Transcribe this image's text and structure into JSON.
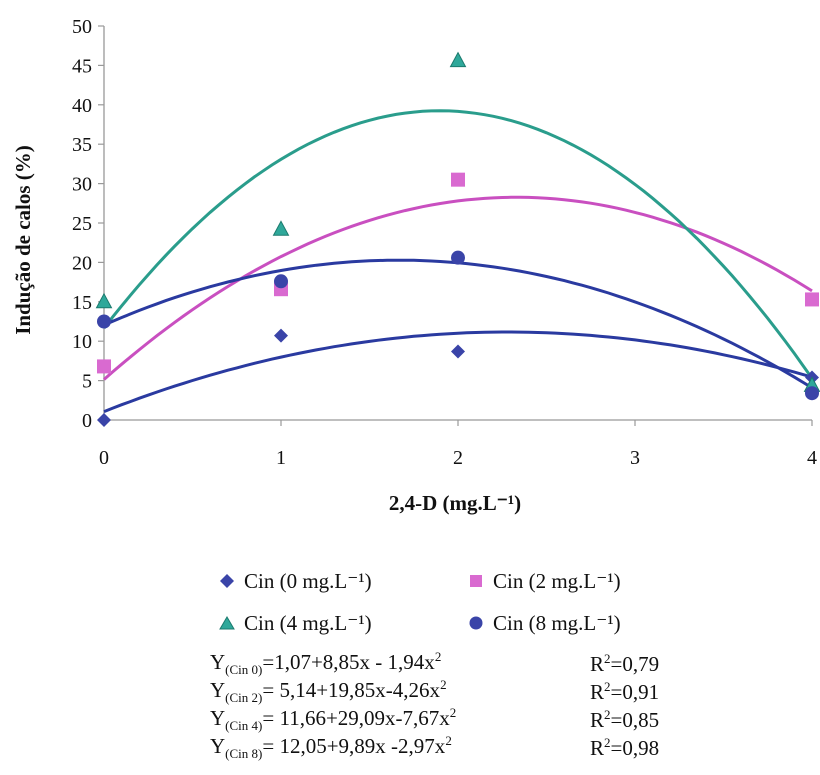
{
  "chart_data": {
    "type": "scatter",
    "ylabel": "Indução de calos (%)",
    "xlabel": "2,4-D (mg.L⁻¹)",
    "x_ticks": [
      0,
      1,
      2,
      3,
      4
    ],
    "y_ticks": [
      0,
      5,
      10,
      15,
      20,
      25,
      30,
      35,
      40,
      45,
      50
    ],
    "xlim": [
      0,
      4
    ],
    "ylim": [
      0,
      50
    ],
    "grid": false,
    "legend_position": "bottom",
    "series": [
      {
        "name": "Cin (0 mg.L⁻¹)",
        "marker": "diamond",
        "color": "#3a44a8",
        "x": [
          0,
          1,
          2,
          4
        ],
        "y": [
          0,
          10.7,
          8.7,
          5.4
        ],
        "fit": [
          1.07,
          8.85,
          -1.94
        ],
        "fit_color": "#2a3aa0"
      },
      {
        "name": "Cin (2 mg.L⁻¹)",
        "marker": "square",
        "color": "#d96ad0",
        "x": [
          0,
          1,
          2,
          4
        ],
        "y": [
          6.8,
          16.6,
          30.5,
          15.3
        ],
        "fit": [
          5.14,
          19.85,
          -4.26
        ],
        "fit_color": "#c94fc0"
      },
      {
        "name": "Cin (4 mg.L⁻¹)",
        "marker": "triangle",
        "color": "#2fa89a",
        "x": [
          0,
          1,
          2,
          4
        ],
        "y": [
          15.0,
          24.2,
          45.6,
          4.4
        ],
        "fit": [
          11.66,
          29.09,
          -7.67
        ],
        "fit_color": "#2a9d8c"
      },
      {
        "name": "Cin (8 mg.L⁻¹)",
        "marker": "circle",
        "color": "#3a44a8",
        "x": [
          0,
          1,
          2,
          4
        ],
        "y": [
          12.5,
          17.6,
          20.6,
          3.4
        ],
        "fit": [
          12.05,
          9.89,
          -2.97
        ],
        "fit_color": "#2a3aa0"
      }
    ]
  },
  "legend": [
    {
      "label": "Cin (0 mg.L⁻¹)"
    },
    {
      "label": "Cin (2 mg.L⁻¹)"
    },
    {
      "label": "Cin (4 mg.L⁻¹)"
    },
    {
      "label": "Cin (8 mg.L⁻¹)"
    }
  ],
  "equations": [
    {
      "sub": "(Cin 0)",
      "body": "=1,07+8,85x - 1,94x",
      "r2": "=0,79"
    },
    {
      "sub": "(Cin 2)",
      "body": "= 5,14+19,85x-4,26x",
      "r2": "=0,91"
    },
    {
      "sub": "(Cin 4)",
      "body": "= 11,66+29,09x-7,67x",
      "r2": "=0,85"
    },
    {
      "sub": "(Cin 8)",
      "body": "= 12,05+9,89x -2,97x",
      "r2": "=0,98"
    }
  ]
}
